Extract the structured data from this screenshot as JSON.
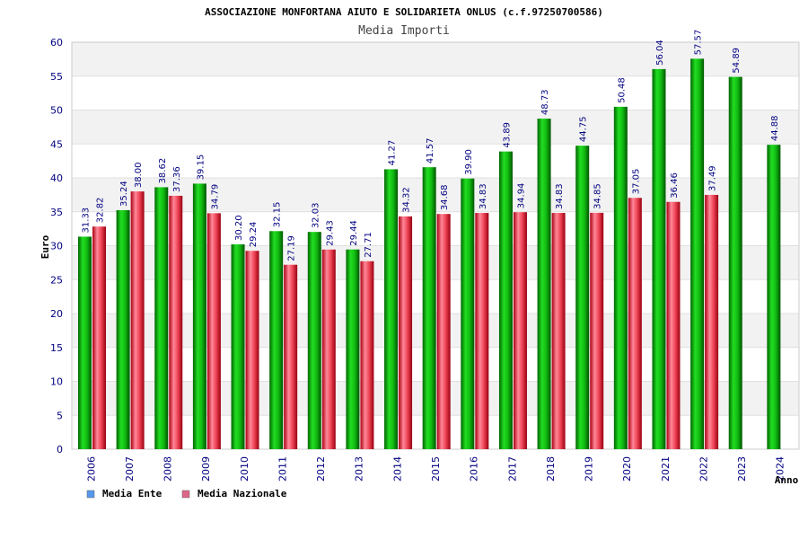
{
  "chart_data": {
    "type": "bar",
    "title": "ASSOCIAZIONE MONFORTANA AIUTO E SOLIDARIETA ONLUS (c.f.97250700586)",
    "subtitle": "Media Importi",
    "xlabel": "Anno",
    "ylabel": "Euro",
    "ylim": [
      0,
      60
    ],
    "yticks": [
      "0",
      "5",
      "10",
      "15",
      "20",
      "25",
      "30",
      "35",
      "40",
      "45",
      "50",
      "55",
      "60"
    ],
    "categories": [
      "2006",
      "2007",
      "2008",
      "2009",
      "2010",
      "2011",
      "2012",
      "2013",
      "2014",
      "2015",
      "2016",
      "2017",
      "2018",
      "2019",
      "2020",
      "2021",
      "2022",
      "2023",
      "2024"
    ],
    "series": [
      {
        "name": "Media Ente",
        "color": "#00aa00",
        "values": [
          31.33,
          35.24,
          38.62,
          39.15,
          30.2,
          32.15,
          32.03,
          29.44,
          41.27,
          41.57,
          39.9,
          43.89,
          48.73,
          44.75,
          50.48,
          56.04,
          57.57,
          54.89,
          44.88
        ],
        "labels": [
          "31.33",
          "35.24",
          "38.62",
          "39.15",
          "30.20",
          "32.15",
          "32.03",
          "29.44",
          "41.27",
          "41.57",
          "39.90",
          "43.89",
          "48.73",
          "44.75",
          "50.48",
          "56.04",
          "57.57",
          "54.89",
          "44.88"
        ]
      },
      {
        "name": "Media Nazionale",
        "color": "#dd2233",
        "values": [
          32.82,
          38.0,
          37.36,
          34.79,
          29.24,
          27.19,
          29.43,
          27.71,
          34.32,
          34.68,
          34.83,
          34.94,
          34.83,
          34.85,
          37.05,
          36.46,
          37.49,
          null,
          null
        ],
        "labels": [
          "32.82",
          "38.00",
          "37.36",
          "34.79",
          "29.24",
          "27.19",
          "29.43",
          "27.71",
          "34.32",
          "34.68",
          "34.83",
          "34.94",
          "34.83",
          "34.85",
          "37.05",
          "36.46",
          "37.49",
          null,
          null
        ]
      }
    ],
    "legend": {
      "placement": "bottom-left",
      "items": [
        {
          "label": "Media Ente",
          "color": "#5599ee"
        },
        {
          "label": "Media Nazionale",
          "color": "#dd6688"
        }
      ]
    },
    "grid": true,
    "band_color": "#f2f2f2"
  }
}
